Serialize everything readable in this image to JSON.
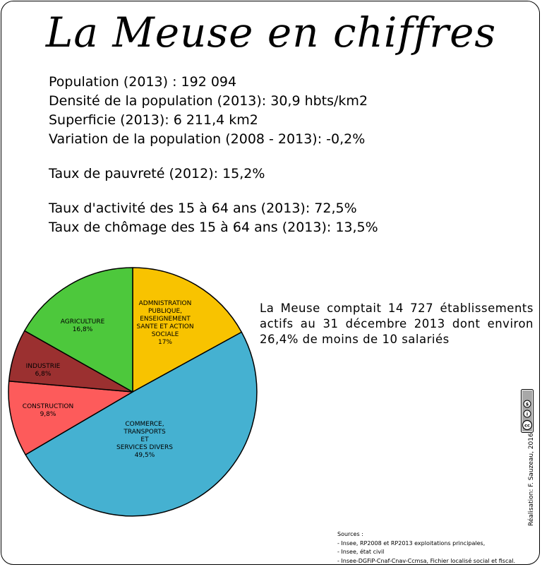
{
  "title": "La Meuse en chiffres",
  "stats": {
    "population": "Population (2013) : 192 094",
    "density": "Densité de la population (2013): 30,9 hbts/km2",
    "area": "Superficie (2013): 6 211,4 km2",
    "variation": "Variation de la population (2008 - 2013): -0,2%",
    "poverty": "Taux de pauvreté (2012): 15,2%",
    "activity": "Taux d'activité des 15 à 64 ans (2013): 72,5%",
    "unemployment": "Taux de chômage des 15 à 64 ans (2013): 13,5%"
  },
  "paragraph": "La Meuse comptait 14 727 établissements actifs au 31 décembre 2013 dont environ 26,4% de moins de 10 salariés",
  "chart_data": {
    "type": "pie",
    "slices": [
      {
        "lines": [
          "ADMNISTRATION",
          "PUBLIQUE,",
          "ENSEIGNEMENT",
          "SANTE ET ACTION",
          "SOCIALE",
          "17%"
        ],
        "value": 17.0,
        "color": "#f8c300"
      },
      {
        "lines": [
          "COMMERCE,",
          "TRANSPORTS",
          "ET",
          "SERVICES DIVERS",
          "49,5%"
        ],
        "value": 49.5,
        "color": "#45b1d1"
      },
      {
        "lines": [
          "CONSTRUCTION",
          "9,8%"
        ],
        "value": 9.8,
        "color": "#fd5b5b"
      },
      {
        "lines": [
          "INDUSTRIE",
          "6,8%"
        ],
        "value": 6.8,
        "color": "#9b3030"
      },
      {
        "lines": [
          "AGRICULTURE",
          "16,8%"
        ],
        "value": 16.8,
        "color": "#4dc83c"
      }
    ]
  },
  "credit": "Réalisation: F. Sauzeau, 2016",
  "license_badge": {
    "icon": "cc-by-nc-icon",
    "labels": [
      "cc",
      "i",
      "$"
    ]
  },
  "sources": {
    "heading": "Sources :",
    "lines": [
      "- Insee, RP2008 et RP2013 exploitations principales,",
      "- Insee, état civil",
      "- Insee-DGFiP-Cnaf-Cnav-Ccmsa, Fichier localisé social et fiscal."
    ]
  }
}
